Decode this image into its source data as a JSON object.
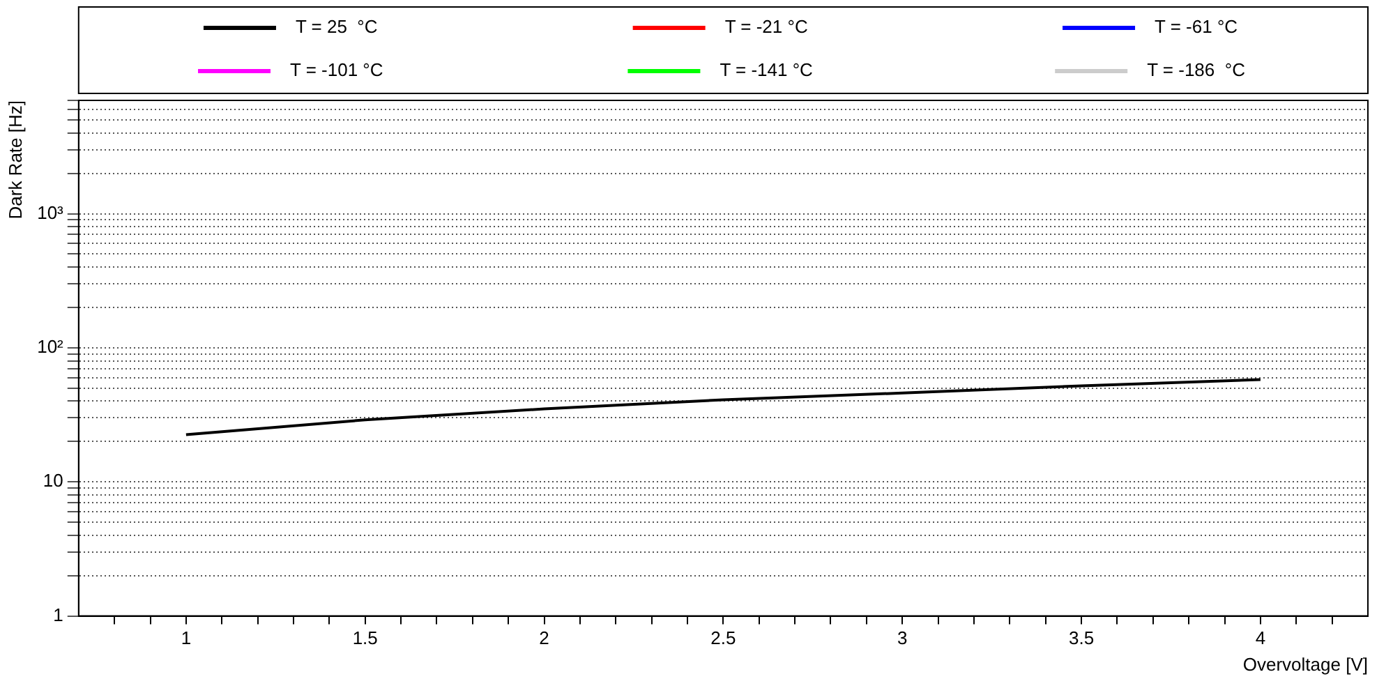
{
  "chart_data": {
    "type": "line",
    "xlabel": "Overvoltage [V]",
    "ylabel": "Dark Rate [Hz]",
    "x": [
      1,
      1.5,
      2,
      2.5,
      3,
      3.5,
      4
    ],
    "series": [
      {
        "name": "T = 25  °C",
        "color": "#000000",
        "values": [
          22.5,
          29,
          35,
          41,
          46,
          52,
          58
        ]
      },
      {
        "name": "T = -21 °C",
        "color": "#ff0000",
        "values": [
          null,
          null,
          null,
          null,
          null,
          null,
          null
        ]
      },
      {
        "name": "T = -61 °C",
        "color": "#0000ff",
        "values": [
          null,
          null,
          null,
          null,
          null,
          null,
          null
        ]
      },
      {
        "name": "T = -101 °C",
        "color": "#ff00ff",
        "values": [
          null,
          null,
          null,
          null,
          null,
          null,
          null
        ]
      },
      {
        "name": "T = -141 °C",
        "color": "#00ff00",
        "values": [
          null,
          null,
          null,
          null,
          null,
          null,
          null
        ]
      },
      {
        "name": "T = -186  °C",
        "color": "#cccccc",
        "values": [
          null,
          null,
          null,
          null,
          null,
          null,
          null
        ]
      }
    ],
    "xlim": [
      0.7,
      4.3
    ],
    "xticks": [
      {
        "value": 0.8,
        "label": null
      },
      {
        "value": 0.9,
        "label": null
      },
      1,
      {
        "value": 1.1,
        "label": null
      },
      {
        "value": 1.2,
        "label": null
      },
      {
        "value": 1.3,
        "label": null
      },
      {
        "value": 1.4,
        "label": null
      },
      1.5,
      {
        "value": 1.6,
        "label": null
      },
      {
        "value": 1.7,
        "label": null
      },
      {
        "value": 1.8,
        "label": null
      },
      {
        "value": 1.9,
        "label": null
      },
      2,
      {
        "value": 2.1,
        "label": null
      },
      {
        "value": 2.2,
        "label": null
      },
      {
        "value": 2.3,
        "label": null
      },
      {
        "value": 2.4,
        "label": null
      },
      2.5,
      {
        "value": 2.6,
        "label": null
      },
      {
        "value": 2.7,
        "label": null
      },
      {
        "value": 2.8,
        "label": null
      },
      {
        "value": 2.9,
        "label": null
      },
      3,
      {
        "value": 3.1,
        "label": null
      },
      {
        "value": 3.2,
        "label": null
      },
      {
        "value": 3.3,
        "label": null
      },
      {
        "value": 3.4,
        "label": null
      },
      3.5,
      {
        "value": 3.6,
        "label": null
      },
      {
        "value": 3.7,
        "label": null
      },
      {
        "value": 3.8,
        "label": null
      },
      {
        "value": 3.9,
        "label": null
      },
      4,
      {
        "value": 4.1,
        "label": null
      },
      {
        "value": 4.2,
        "label": null
      }
    ],
    "ylim": [
      1,
      7000
    ],
    "yticks": [
      1,
      {
        "value": 2,
        "label": null
      },
      {
        "value": 3,
        "label": null
      },
      {
        "value": 4,
        "label": null
      },
      {
        "value": 5,
        "label": null
      },
      {
        "value": 6,
        "label": null
      },
      {
        "value": 7,
        "label": null
      },
      {
        "value": 8,
        "label": null
      },
      {
        "value": 9,
        "label": null
      },
      10,
      {
        "value": 20,
        "label": null
      },
      {
        "value": 30,
        "label": null
      },
      {
        "value": 40,
        "label": null
      },
      {
        "value": 50,
        "label": null
      },
      {
        "value": 60,
        "label": null
      },
      {
        "value": 70,
        "label": null
      },
      {
        "value": 80,
        "label": null
      },
      {
        "value": 90,
        "label": null
      },
      {
        "value": 100,
        "label": "10²"
      },
      {
        "value": 200,
        "label": null
      },
      {
        "value": 300,
        "label": null
      },
      {
        "value": 400,
        "label": null
      },
      {
        "value": 500,
        "label": null
      },
      {
        "value": 600,
        "label": null
      },
      {
        "value": 700,
        "label": null
      },
      {
        "value": 800,
        "label": null
      },
      {
        "value": 900,
        "label": null
      },
      {
        "value": 1000,
        "label": "10³"
      },
      {
        "value": 2000,
        "label": null
      },
      {
        "value": 3000,
        "label": null
      },
      {
        "value": 4000,
        "label": null
      },
      {
        "value": 5000,
        "label": null
      },
      {
        "value": 6000,
        "label": null
      },
      {
        "value": 7000,
        "label": null
      }
    ],
    "log": "y",
    "grid": "y",
    "legend": "top",
    "marker": "none",
    "line_style": "solid"
  }
}
